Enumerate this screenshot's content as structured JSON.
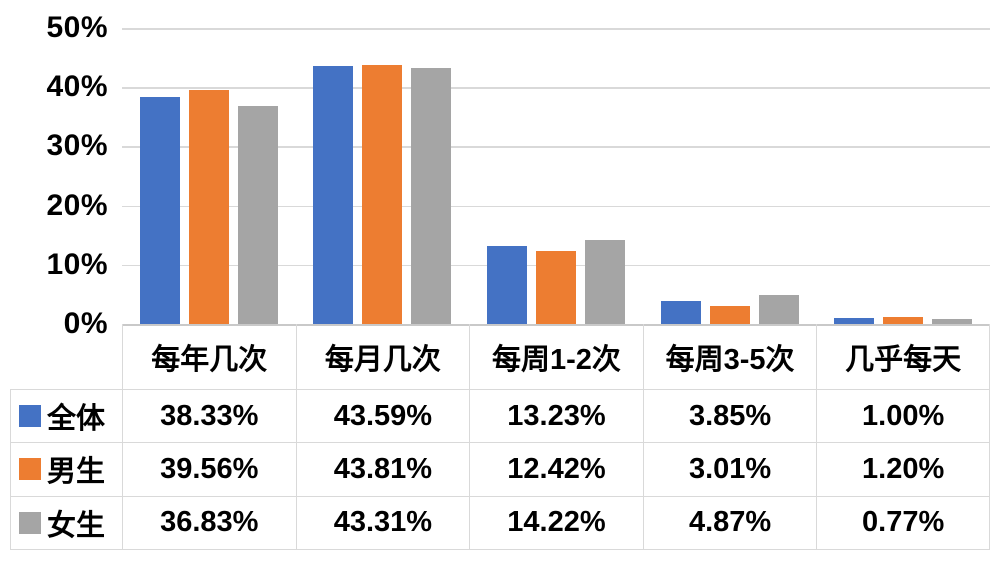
{
  "chart_data": {
    "type": "bar",
    "title": "",
    "xlabel": "",
    "ylabel": "",
    "categories": [
      "每年几次",
      "每月几次",
      "每周1-2次",
      "每周3-5次",
      "几乎每天"
    ],
    "series": [
      {
        "name": "全体",
        "color": "#4472C4",
        "values": [
          38.33,
          43.59,
          13.23,
          3.85,
          1.0
        ]
      },
      {
        "name": "男生",
        "color": "#ED7D31",
        "values": [
          39.56,
          43.81,
          12.42,
          3.01,
          1.2
        ]
      },
      {
        "name": "女生",
        "color": "#A5A5A5",
        "values": [
          36.83,
          43.31,
          14.22,
          4.87,
          0.77
        ]
      }
    ],
    "ylim": [
      0,
      50
    ],
    "yticks": [
      "50%",
      "40%",
      "30%",
      "20%",
      "10%",
      "0%"
    ],
    "grid": true,
    "legend_position": "data-table-row-labels",
    "value_format": "0.00%"
  },
  "table": {
    "column_headers": [
      "每年几次",
      "每月几次",
      "每周1-2次",
      "每周3-5次",
      "几乎每天"
    ],
    "rows": [
      {
        "label": "全体",
        "key_color": "#4472C4",
        "cells": [
          "38.33%",
          "43.59%",
          "13.23%",
          "3.85%",
          "1.00%"
        ]
      },
      {
        "label": "男生",
        "key_color": "#ED7D31",
        "cells": [
          "39.56%",
          "43.81%",
          "12.42%",
          "3.01%",
          "1.20%"
        ]
      },
      {
        "label": "女生",
        "key_color": "#A5A5A5",
        "cells": [
          "36.83%",
          "43.31%",
          "14.22%",
          "4.87%",
          "0.77%"
        ]
      }
    ]
  },
  "colors": {
    "series_blue": "#4472C4",
    "series_orange": "#ED7D31",
    "series_gray": "#A5A5A5",
    "gridline": "#D9D9D9",
    "axis_line": "#C9C9C9",
    "table_border": "#D9D9D9",
    "text": "#000000",
    "background": "#FFFFFF"
  }
}
